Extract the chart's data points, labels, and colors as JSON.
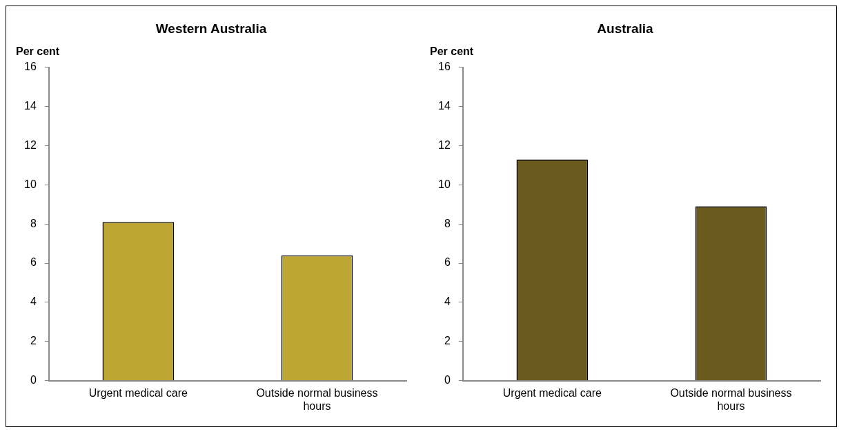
{
  "chart_data": [
    {
      "type": "bar",
      "title": "Western Australia",
      "ylabel": "Per cent",
      "categories": [
        "Urgent medical care",
        "Outside normal business hours"
      ],
      "values": [
        8.1,
        6.4
      ],
      "color": "#bda633",
      "ylim": [
        0,
        16
      ],
      "yticks": [
        0,
        2,
        4,
        6,
        8,
        10,
        12,
        14,
        16
      ],
      "grid": false,
      "legend": false
    },
    {
      "type": "bar",
      "title": "Australia",
      "ylabel": "Per cent",
      "categories": [
        "Urgent medical care",
        "Outside normal business hours"
      ],
      "values": [
        11.3,
        8.9
      ],
      "color": "#6b5a1e",
      "ylim": [
        0,
        16
      ],
      "yticks": [
        0,
        2,
        4,
        6,
        8,
        10,
        12,
        14,
        16
      ],
      "grid": false,
      "legend": false
    }
  ]
}
